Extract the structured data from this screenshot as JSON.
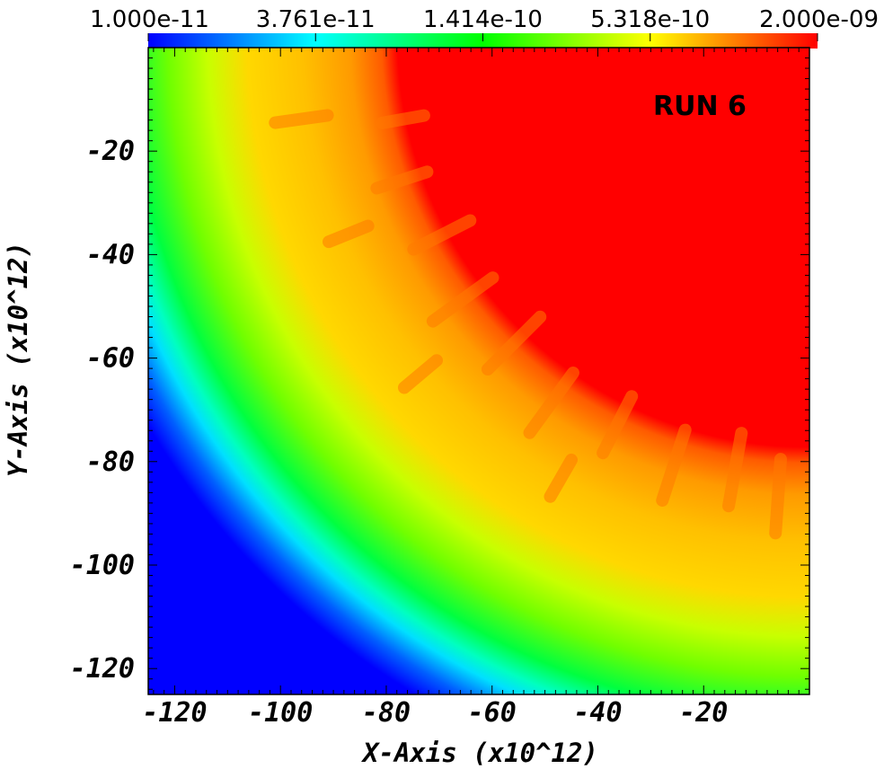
{
  "chart_data": {
    "type": "heatmap",
    "annotation": "RUN 6",
    "xlabel": "X-Axis (x10^12)",
    "ylabel": "Y-Axis (x10^12)",
    "xlim": [
      -125,
      0
    ],
    "ylim": [
      -125,
      0
    ],
    "x_ticks": [
      -120,
      -100,
      -80,
      -60,
      -40,
      -20
    ],
    "y_ticks": [
      -120,
      -100,
      -80,
      -60,
      -40,
      -20
    ],
    "colorbar": {
      "scale": "log",
      "range": [
        1e-11,
        2e-09
      ],
      "tick_labels": [
        "1.000e-11",
        "3.761e-11",
        "1.414e-10",
        "5.318e-10",
        "2.000e-09"
      ],
      "colormap": [
        "#0000ff",
        "#00ffff",
        "#00ff00",
        "#ffff00",
        "#ff0000"
      ]
    },
    "field": {
      "description_units": "x10^12",
      "center": [
        0,
        0
      ],
      "bands": [
        {
          "radius": 65,
          "color": "#ff0000"
        },
        {
          "radius": 72,
          "color": "#ff8a00"
        },
        {
          "radius": 80,
          "color": "#ffc800"
        },
        {
          "radius": 90,
          "color": "#ffd000"
        },
        {
          "radius": 100,
          "color": "#b8ff00"
        },
        {
          "radius": 108,
          "color": "#40ff00"
        },
        {
          "radius": 114,
          "color": "#00ff80"
        },
        {
          "radius": 118,
          "color": "#00ffff"
        },
        {
          "radius": 123,
          "color": "#0080ff"
        }
      ],
      "background": "#0000ff"
    }
  }
}
